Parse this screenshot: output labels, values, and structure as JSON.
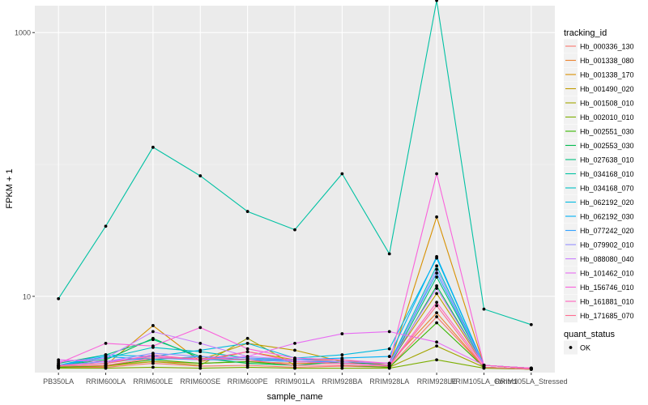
{
  "chart_data": {
    "type": "line",
    "xlabel": "sample_name",
    "ylabel": "FPKM + 1",
    "y_scale": "log10",
    "ylim": [
      2.64,
      1600
    ],
    "y_ticks": [
      10,
      1000
    ],
    "y_minor_ticks": [
      1,
      100
    ],
    "grid": true,
    "legend_position": "right",
    "categories": [
      "PB350LA",
      "RRIM600LA",
      "RRIM600LE",
      "RRIM600SE",
      "RRIM600PE",
      "RRIM901LA",
      "RRIM928BA",
      "RRIM928LA",
      "RRIM928LE",
      "RRIM105LA_Control",
      "RRIM105LA_Stressed"
    ],
    "legend": {
      "title": "tracking_id",
      "entries": [
        {
          "name": "Hb_000336_130",
          "color": "#F8766D"
        },
        {
          "name": "Hb_001338_080",
          "color": "#EA8331"
        },
        {
          "name": "Hb_001338_170",
          "color": "#D89000"
        },
        {
          "name": "Hb_001490_020",
          "color": "#C09B00"
        },
        {
          "name": "Hb_001508_010",
          "color": "#A3A500"
        },
        {
          "name": "Hb_002010_010",
          "color": "#7CAE00"
        },
        {
          "name": "Hb_002551_030",
          "color": "#39B600"
        },
        {
          "name": "Hb_002553_030",
          "color": "#00BB4E"
        },
        {
          "name": "Hb_027638_010",
          "color": "#00BF7D"
        },
        {
          "name": "Hb_034168_010",
          "color": "#00C1A3"
        },
        {
          "name": "Hb_034168_070",
          "color": "#00BFC4"
        },
        {
          "name": "Hb_062192_020",
          "color": "#00BAE0"
        },
        {
          "name": "Hb_062192_030",
          "color": "#00B0F6"
        },
        {
          "name": "Hb_077242_020",
          "color": "#35A2FF"
        },
        {
          "name": "Hb_079902_010",
          "color": "#9590FF"
        },
        {
          "name": "Hb_088080_040",
          "color": "#C77CFF"
        },
        {
          "name": "Hb_101462_010",
          "color": "#E76BF3"
        },
        {
          "name": "Hb_156746_010",
          "color": "#FA62DB"
        },
        {
          "name": "Hb_161881_010",
          "color": "#FF62BC"
        },
        {
          "name": "Hb_171685_070",
          "color": "#FF6C91"
        }
      ]
    },
    "shape_legend": {
      "title": "quant_status",
      "entries": [
        {
          "name": "OK"
        }
      ]
    },
    "series": [
      {
        "name": "Hb_000336_130",
        "color": "#F8766D",
        "values": [
          2.9,
          2.9,
          3.1,
          2.95,
          3.0,
          2.9,
          2.95,
          2.9,
          7.0,
          2.9,
          2.8
        ]
      },
      {
        "name": "Hb_001338_080",
        "color": "#EA8331",
        "values": [
          2.9,
          3.0,
          3.2,
          3.1,
          3.2,
          3.1,
          3.1,
          3.1,
          7.5,
          2.9,
          2.8
        ]
      },
      {
        "name": "Hb_001338_170",
        "color": "#D89000",
        "values": [
          2.95,
          3.0,
          6.0,
          3.2,
          3.8,
          3.3,
          3.3,
          3.0,
          40.0,
          3.0,
          2.85
        ]
      },
      {
        "name": "Hb_001490_020",
        "color": "#C09B00",
        "values": [
          3.0,
          3.1,
          3.5,
          3.3,
          4.4,
          3.9,
          3.2,
          3.1,
          10.5,
          3.0,
          2.85
        ]
      },
      {
        "name": "Hb_001508_010",
        "color": "#A3A500",
        "values": [
          2.9,
          2.95,
          3.2,
          3.0,
          4.8,
          3.0,
          3.0,
          2.9,
          4.2,
          2.9,
          2.8
        ]
      },
      {
        "name": "Hb_002010_010",
        "color": "#7CAE00",
        "values": [
          2.85,
          2.85,
          2.9,
          2.85,
          2.9,
          2.85,
          2.85,
          2.85,
          3.3,
          2.85,
          2.8
        ]
      },
      {
        "name": "Hb_002551_030",
        "color": "#39B600",
        "values": [
          2.9,
          3.0,
          3.3,
          3.1,
          3.2,
          3.0,
          3.0,
          2.9,
          6.3,
          2.9,
          2.8
        ]
      },
      {
        "name": "Hb_002553_030",
        "color": "#00BB4E",
        "values": [
          3.0,
          3.3,
          4.8,
          3.4,
          3.1,
          3.0,
          3.2,
          3.0,
          12.0,
          3.0,
          2.85
        ]
      },
      {
        "name": "Hb_027638_010",
        "color": "#00BF7D",
        "values": [
          3.1,
          3.6,
          4.7,
          3.5,
          3.3,
          3.2,
          3.1,
          3.0,
          14.0,
          3.0,
          2.85
        ]
      },
      {
        "name": "Hb_034168_010",
        "color": "#00C1A3",
        "values": [
          9.6,
          34.0,
          135.0,
          82.0,
          44.0,
          32.0,
          85.0,
          21.0,
          1750.0,
          8.0,
          6.1
        ]
      },
      {
        "name": "Hb_034168_070",
        "color": "#00BFC4",
        "values": [
          3.0,
          3.4,
          4.1,
          3.8,
          3.4,
          3.3,
          3.2,
          3.1,
          17.0,
          3.0,
          2.85
        ]
      },
      {
        "name": "Hb_062192_020",
        "color": "#00BAE0",
        "values": [
          3.0,
          3.6,
          3.5,
          3.9,
          4.4,
          3.4,
          3.6,
          4.0,
          19.5,
          3.0,
          2.85
        ]
      },
      {
        "name": "Hb_062192_030",
        "color": "#00B0F6",
        "values": [
          3.0,
          3.5,
          3.3,
          3.5,
          3.3,
          3.3,
          3.4,
          3.5,
          20.0,
          3.0,
          2.85
        ]
      },
      {
        "name": "Hb_077242_020",
        "color": "#35A2FF",
        "values": [
          3.0,
          3.2,
          3.4,
          3.3,
          3.3,
          3.2,
          3.2,
          3.1,
          15.0,
          3.0,
          2.85
        ]
      },
      {
        "name": "Hb_079902_010",
        "color": "#9590FF",
        "values": [
          3.0,
          3.2,
          3.7,
          3.5,
          3.4,
          3.2,
          3.1,
          3.0,
          16.0,
          3.0,
          2.85
        ]
      },
      {
        "name": "Hb_088080_040",
        "color": "#C77CFF",
        "values": [
          3.2,
          3.4,
          5.4,
          4.4,
          3.5,
          3.3,
          3.2,
          3.1,
          11.5,
          3.0,
          2.85
        ]
      },
      {
        "name": "Hb_101462_010",
        "color": "#E76BF3",
        "values": [
          3.3,
          3.2,
          3.5,
          3.3,
          3.5,
          4.4,
          5.2,
          5.4,
          4.5,
          3.0,
          2.85
        ]
      },
      {
        "name": "Hb_156746_010",
        "color": "#FA62DB",
        "values": [
          3.1,
          4.4,
          4.2,
          5.8,
          4.0,
          3.4,
          3.3,
          3.1,
          85.0,
          3.0,
          2.85
        ]
      },
      {
        "name": "Hb_161881_010",
        "color": "#FF62BC",
        "values": [
          3.0,
          3.1,
          3.6,
          3.3,
          3.8,
          3.2,
          3.1,
          3.0,
          9.0,
          3.0,
          2.85
        ]
      },
      {
        "name": "Hb_171685_070",
        "color": "#FF6C91",
        "values": [
          2.95,
          3.0,
          3.4,
          3.4,
          3.3,
          3.0,
          3.0,
          2.95,
          8.5,
          2.9,
          2.8
        ]
      }
    ]
  }
}
